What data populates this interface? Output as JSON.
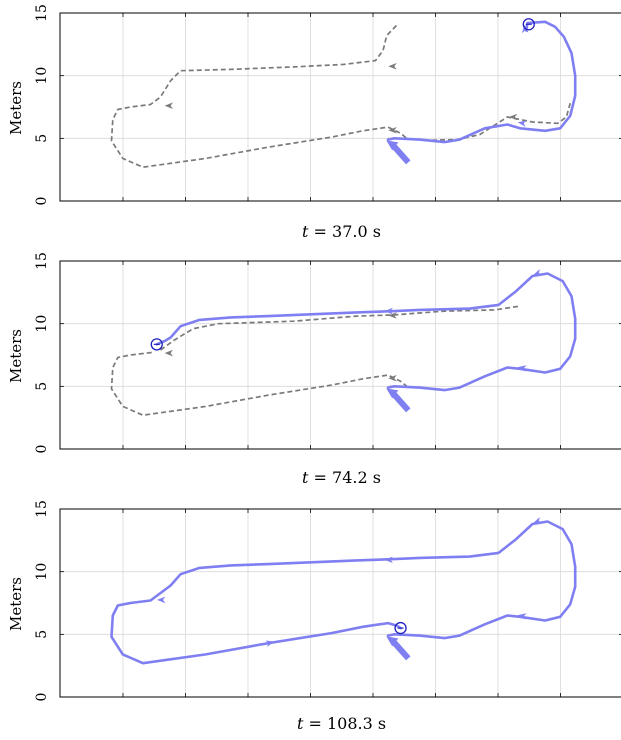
{
  "chart_data": [
    {
      "type": "line",
      "ylabel": "Meters",
      "caption": {
        "var": "t",
        "eq": "= 37.0 s"
      },
      "ylim": [
        0,
        15
      ],
      "yticks": [
        0,
        5,
        10,
        15
      ],
      "grid": true,
      "series": [
        {
          "style": "gray-dashed",
          "points": [
            [
              0.17,
              14.0
            ],
            [
              -0.6,
              13.2
            ],
            [
              -0.9,
              12.0
            ],
            [
              -1.5,
              11.2
            ],
            [
              -4,
              10.9
            ],
            [
              -8,
              10.7
            ],
            [
              -13,
              10.5
            ],
            [
              -17,
              10.4
            ],
            [
              -17.8,
              9.6
            ],
            [
              -18.6,
              8.3
            ],
            [
              -19.4,
              7.7
            ],
            [
              -21,
              7.5
            ],
            [
              -22,
              7.3
            ],
            [
              -22.4,
              6.5
            ],
            [
              -22.5,
              4.8
            ],
            [
              -21.6,
              3.4
            ],
            [
              -20,
              2.7
            ],
            [
              -15,
              3.4
            ],
            [
              -10,
              4.3
            ],
            [
              -5,
              5.1
            ],
            [
              -2.5,
              5.6
            ],
            [
              -0.5,
              5.9
            ],
            [
              0.5,
              5.4
            ],
            [
              1,
              5.0
            ],
            [
              0,
              5.0
            ],
            [
              -0.5,
              5.0
            ]
          ]
        },
        {
          "style": "gray-dashed",
          "points": [
            [
              3,
              4.85
            ],
            [
              5,
              4.9
            ],
            [
              6.8,
              5.3
            ],
            [
              9,
              6.7
            ],
            [
              11,
              6.3
            ],
            [
              13,
              6.2
            ],
            [
              13.7,
              6.7
            ],
            [
              14.0,
              7.8
            ]
          ]
        },
        {
          "style": "blue-solid",
          "points": [
            [
              -0.5,
              4.9
            ],
            [
              0,
              5.0
            ],
            [
              2,
              4.9
            ],
            [
              4,
              4.7
            ],
            [
              5.2,
              4.9
            ],
            [
              7.2,
              5.8
            ],
            [
              9,
              6.1
            ],
            [
              10,
              5.8
            ],
            [
              12,
              5.6
            ],
            [
              13.2,
              5.8
            ],
            [
              14.0,
              6.8
            ],
            [
              14.4,
              8.4
            ],
            [
              14.4,
              10.0
            ],
            [
              14.1,
              11.8
            ],
            [
              13.5,
              13.1
            ],
            [
              12.8,
              13.9
            ],
            [
              12.0,
              14.3
            ],
            [
              10.6,
              14.2
            ],
            [
              10.5,
              13.6
            ]
          ]
        }
      ],
      "arrows": [
        {
          "at": [
            0.0,
            4.2
          ],
          "length": 2.2,
          "angle": 235,
          "style": "blue-thick"
        },
        {
          "at": [
            10.3,
            6.2
          ],
          "length": 0.6,
          "angle": 170,
          "style": "blue"
        },
        {
          "at": [
            10.4,
            13.6
          ],
          "length": 0.7,
          "angle": 95,
          "style": "blue"
        },
        {
          "at": [
            0.0,
            10.75
          ],
          "length": 0.6,
          "angle": 180,
          "style": "gray"
        },
        {
          "at": [
            -17.8,
            7.6
          ],
          "length": 0.6,
          "angle": 180,
          "style": "gray"
        },
        {
          "at": [
            0.0,
            5.65
          ],
          "length": 0.6,
          "angle": 180,
          "style": "gray"
        },
        {
          "at": [
            9.6,
            6.7
          ],
          "length": 0.6,
          "angle": 180,
          "style": "gray"
        }
      ],
      "marker": [
        10.7,
        14.1
      ]
    },
    {
      "type": "line",
      "ylabel": "Meters",
      "caption": {
        "var": "t",
        "eq": "= 74.2 s"
      },
      "ylim": [
        0,
        15
      ],
      "yticks": [
        0,
        5,
        10,
        15
      ],
      "grid": true,
      "series": [
        {
          "style": "gray-dashed",
          "points": [
            [
              -19.3,
              7.7
            ],
            [
              -21,
              7.5
            ],
            [
              -22,
              7.3
            ],
            [
              -22.4,
              6.5
            ],
            [
              -22.5,
              4.8
            ],
            [
              -21.6,
              3.4
            ],
            [
              -20,
              2.7
            ],
            [
              -15,
              3.4
            ],
            [
              -10,
              4.3
            ],
            [
              -5,
              5.1
            ],
            [
              -2.5,
              5.6
            ],
            [
              -0.5,
              5.9
            ],
            [
              0.5,
              5.4
            ],
            [
              1,
              5.0
            ],
            [
              0,
              5.0
            ],
            [
              -0.5,
              5.0
            ]
          ]
        },
        {
          "style": "gray-dashed",
          "points": [
            [
              -18.6,
              7.9
            ],
            [
              -17.5,
              8.7
            ],
            [
              -16,
              9.6
            ],
            [
              -14,
              10.0
            ],
            [
              -8,
              10.2
            ],
            [
              -3,
              10.6
            ],
            [
              0,
              10.7
            ],
            [
              4,
              11.0
            ],
            [
              8,
              11.1
            ],
            [
              10,
              11.4
            ]
          ]
        },
        {
          "style": "blue-solid",
          "points": [
            [
              -0.5,
              4.9
            ],
            [
              0,
              5.0
            ],
            [
              2,
              4.9
            ],
            [
              4,
              4.7
            ],
            [
              5.2,
              4.9
            ],
            [
              7.2,
              5.8
            ],
            [
              9,
              6.5
            ],
            [
              10,
              6.4
            ],
            [
              12,
              6.1
            ],
            [
              13.2,
              6.4
            ],
            [
              14.0,
              7.4
            ],
            [
              14.4,
              8.8
            ],
            [
              14.4,
              10.4
            ],
            [
              14.1,
              12.2
            ],
            [
              13.4,
              13.4
            ],
            [
              12.2,
              14.0
            ],
            [
              11,
              13.8
            ],
            [
              9.7,
              12.6
            ],
            [
              8.3,
              11.5
            ],
            [
              6,
              11.2
            ],
            [
              2,
              11.1
            ],
            [
              0,
              11.0
            ],
            [
              -3,
              10.9
            ],
            [
              -10,
              10.6
            ],
            [
              -13,
              10.5
            ],
            [
              -15.5,
              10.3
            ],
            [
              -17.0,
              9.8
            ],
            [
              -17.8,
              8.9
            ],
            [
              -18.3,
              8.6
            ],
            [
              -18.9,
              8.35
            ]
          ]
        }
      ],
      "arrows": [
        {
          "at": [
            0.0,
            4.2
          ],
          "length": 2.2,
          "angle": 235,
          "style": "blue-thick"
        },
        {
          "at": [
            10.3,
            6.45
          ],
          "length": 0.6,
          "angle": 170,
          "style": "blue"
        },
        {
          "at": [
            11.5,
            14.05
          ],
          "length": 0.6,
          "angle": 200,
          "style": "blue"
        },
        {
          "at": [
            -0.3,
            11.0
          ],
          "length": 0.6,
          "angle": 180,
          "style": "blue"
        },
        {
          "at": [
            0.0,
            10.65
          ],
          "length": 0.6,
          "angle": 180,
          "style": "gray"
        },
        {
          "at": [
            -17.8,
            7.65
          ],
          "length": 0.6,
          "angle": 180,
          "style": "gray"
        },
        {
          "at": [
            0.0,
            5.65
          ],
          "length": 0.6,
          "angle": 180,
          "style": "gray"
        }
      ],
      "marker": [
        -18.9,
        8.35
      ]
    },
    {
      "type": "line",
      "ylabel": "Meters",
      "caption": {
        "var": "t",
        "eq": "= 108.3 s"
      },
      "ylim": [
        0,
        15
      ],
      "yticks": [
        0,
        5,
        10,
        15
      ],
      "grid": true,
      "series": [
        {
          "style": "blue-solid",
          "points": [
            [
              -0.5,
              4.9
            ],
            [
              0,
              5.0
            ],
            [
              2,
              4.9
            ],
            [
              4,
              4.7
            ],
            [
              5.2,
              4.9
            ],
            [
              7.2,
              5.8
            ],
            [
              9,
              6.5
            ],
            [
              10,
              6.4
            ],
            [
              12,
              6.1
            ],
            [
              13.2,
              6.4
            ],
            [
              14.0,
              7.4
            ],
            [
              14.4,
              8.8
            ],
            [
              14.4,
              10.4
            ],
            [
              14.1,
              12.2
            ],
            [
              13.4,
              13.4
            ],
            [
              12.2,
              14.0
            ],
            [
              11,
              13.8
            ],
            [
              9.7,
              12.6
            ],
            [
              8.3,
              11.5
            ],
            [
              6,
              11.2
            ],
            [
              2,
              11.1
            ],
            [
              0,
              11.0
            ],
            [
              -3,
              10.9
            ],
            [
              -10,
              10.6
            ],
            [
              -13,
              10.5
            ],
            [
              -15.5,
              10.3
            ],
            [
              -17.0,
              9.8
            ],
            [
              -17.8,
              8.9
            ],
            [
              -19.4,
              7.7
            ],
            [
              -21,
              7.5
            ],
            [
              -22,
              7.3
            ],
            [
              -22.4,
              6.5
            ],
            [
              -22.5,
              4.8
            ],
            [
              -21.6,
              3.4
            ],
            [
              -20,
              2.7
            ],
            [
              -15,
              3.4
            ],
            [
              -10,
              4.3
            ],
            [
              -5,
              5.1
            ],
            [
              -2.5,
              5.6
            ],
            [
              -0.5,
              5.9
            ],
            [
              0.2,
              5.7
            ],
            [
              0.5,
              5.5
            ]
          ]
        }
      ],
      "arrows": [
        {
          "at": [
            0.0,
            4.2
          ],
          "length": 2.2,
          "angle": 235,
          "style": "blue-thick"
        },
        {
          "at": [
            10.3,
            6.45
          ],
          "length": 0.6,
          "angle": 170,
          "style": "blue"
        },
        {
          "at": [
            11.5,
            14.05
          ],
          "length": 0.6,
          "angle": 200,
          "style": "blue"
        },
        {
          "at": [
            -0.3,
            10.95
          ],
          "length": 0.6,
          "angle": 180,
          "style": "blue"
        },
        {
          "at": [
            -18.4,
            7.75
          ],
          "length": 0.6,
          "angle": 180,
          "style": "blue"
        },
        {
          "at": [
            -10,
            4.3
          ],
          "length": 0.6,
          "angle": 15,
          "style": "blue"
        }
      ],
      "marker": [
        0.5,
        5.5
      ]
    }
  ],
  "colors": {
    "blue": "#7f7ff2",
    "blue_marker": "#2020c0",
    "gray": "#7a7a7a",
    "grid": "#d8d8d8",
    "axis": "#000000"
  }
}
